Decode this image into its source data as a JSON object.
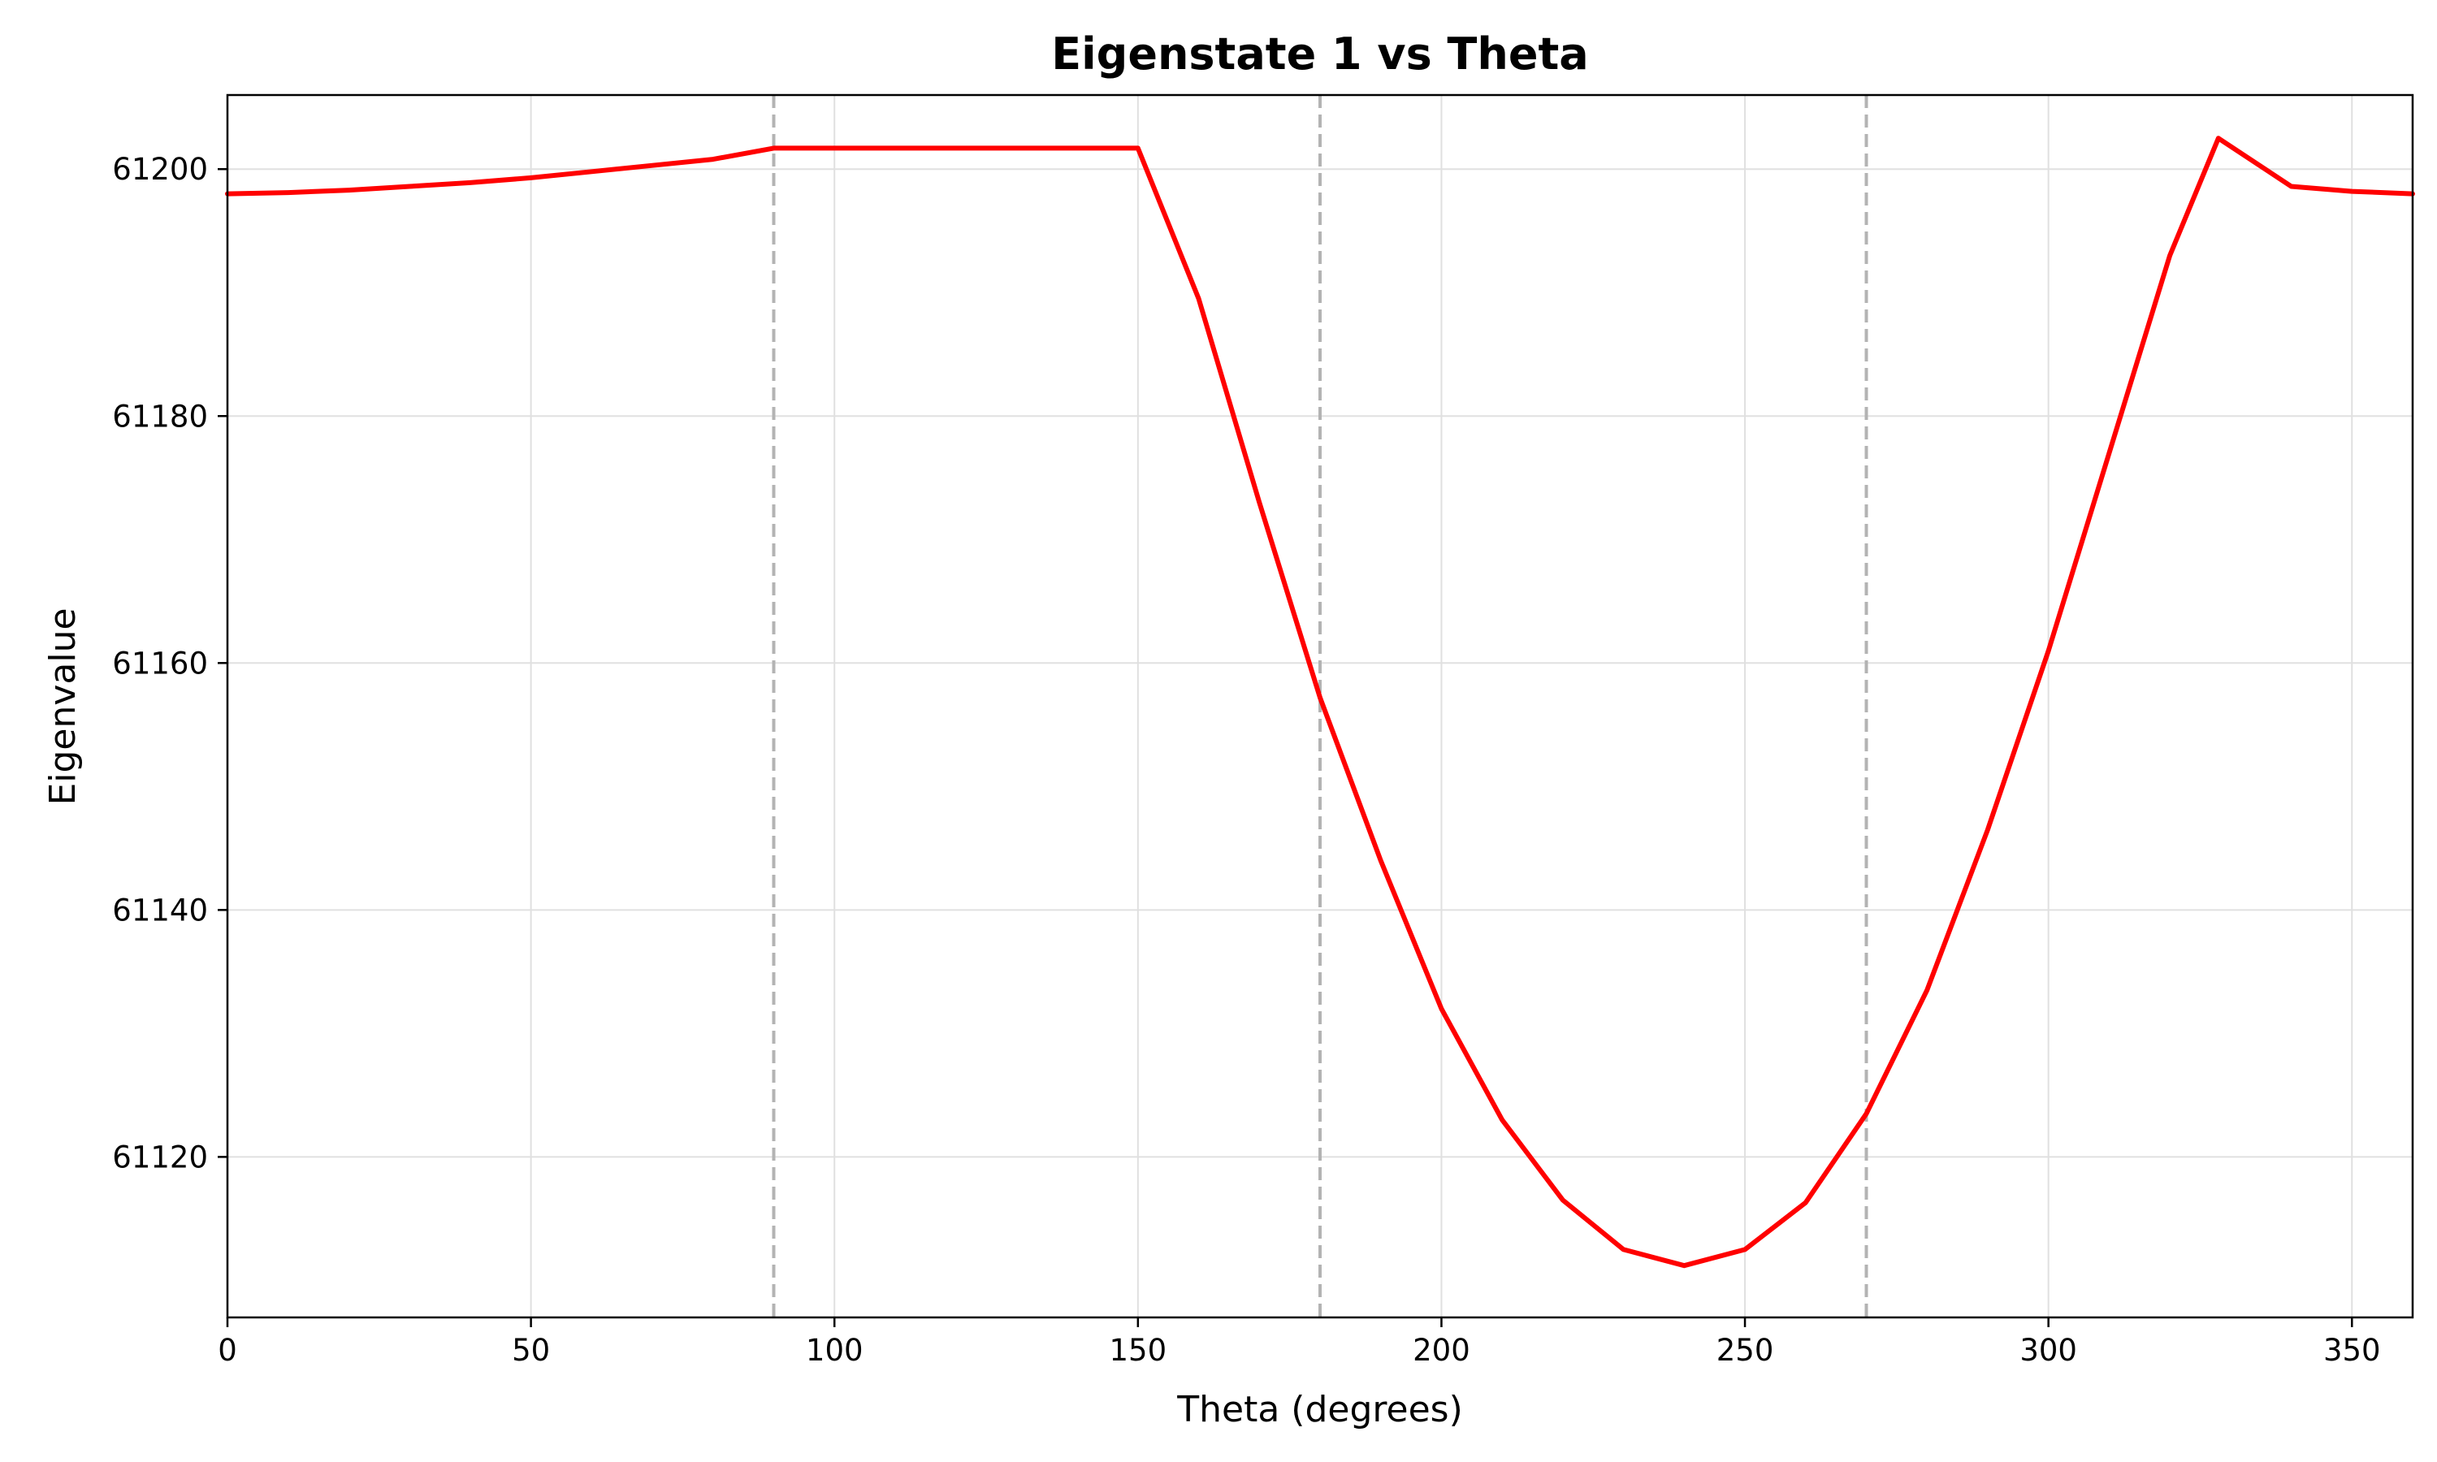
{
  "chart_data": {
    "type": "line",
    "title": "Eigenstate 1 vs Theta",
    "xlabel": "Theta (degrees)",
    "ylabel": "Eigenvalue",
    "xlim": [
      0,
      360
    ],
    "ylim": [
      61107,
      61206
    ],
    "xticks": [
      0,
      50,
      100,
      150,
      200,
      250,
      300,
      350
    ],
    "yticks": [
      61120,
      61140,
      61160,
      61180,
      61200
    ],
    "grid": true,
    "legend": null,
    "vlines": [
      {
        "x": 90,
        "style": "dashed",
        "color": "#b3b3b3"
      },
      {
        "x": 180,
        "style": "dashed",
        "color": "#b3b3b3"
      },
      {
        "x": 270,
        "style": "dashed",
        "color": "#b3b3b3"
      }
    ],
    "series": [
      {
        "color": "#ff0000",
        "x": [
          0,
          10,
          20,
          30,
          40,
          50,
          60,
          70,
          80,
          90,
          150,
          160,
          170,
          180,
          190,
          200,
          210,
          220,
          230,
          240,
          250,
          260,
          270,
          280,
          290,
          300,
          310,
          320,
          328,
          340,
          350,
          360
        ],
        "y": [
          61198.0,
          61198.1,
          61198.3,
          61198.6,
          61198.9,
          61199.3,
          61199.8,
          61200.3,
          61200.8,
          61201.7,
          61201.7,
          61189.5,
          61173.0,
          61157.2,
          61144.0,
          61132.0,
          61123.0,
          61116.5,
          61112.5,
          61111.2,
          61112.5,
          61116.3,
          61123.5,
          61133.5,
          61146.5,
          61161.0,
          61177.0,
          61193.0,
          61202.5,
          61198.6,
          61198.2,
          61198.0
        ]
      }
    ]
  }
}
